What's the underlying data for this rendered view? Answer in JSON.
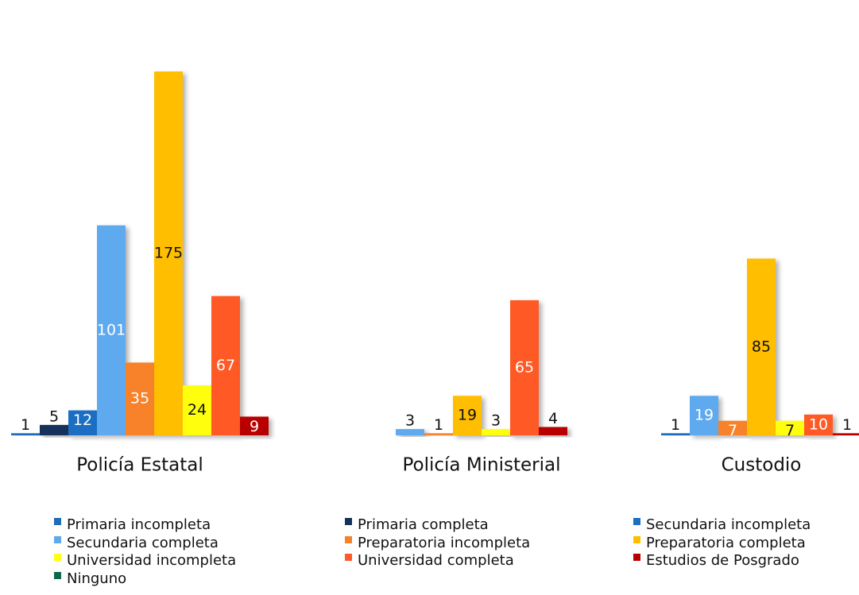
{
  "chart_data": {
    "type": "bar",
    "categories": [
      "Policía Estatal",
      "Policía Ministerial",
      "Custodio"
    ],
    "series": [
      {
        "name": "Primaria incompleta",
        "color": "#1f6cb8",
        "values": [
          1,
          null,
          1
        ]
      },
      {
        "name": "Primaria completa",
        "color": "#17325a",
        "values": [
          5,
          null,
          null
        ]
      },
      {
        "name": "Secundaria incompleta",
        "color": "#1b6ec2",
        "values": [
          12,
          null,
          null
        ]
      },
      {
        "name": "Secundaria completa",
        "color": "#5eaaee",
        "values": [
          101,
          3,
          19
        ]
      },
      {
        "name": "Preparatoria incompleta",
        "color": "#f7822a",
        "values": [
          35,
          1,
          7
        ]
      },
      {
        "name": "Preparatoria completa",
        "color": "#ffbe00",
        "values": [
          175,
          19,
          85
        ]
      },
      {
        "name": "Universidad incompleta",
        "color": "#ffff10",
        "values": [
          24,
          3,
          7
        ]
      },
      {
        "name": "Universidad completa",
        "color": "#ff5a28",
        "values": [
          67,
          65,
          10
        ]
      },
      {
        "name": "Estudios de Posgrado",
        "color": "#b80000",
        "values": [
          9,
          4,
          1
        ]
      },
      {
        "name": "Ninguno",
        "color": "#0e6b4a",
        "values": [
          null,
          null,
          null
        ]
      }
    ],
    "legend": "bottom"
  }
}
